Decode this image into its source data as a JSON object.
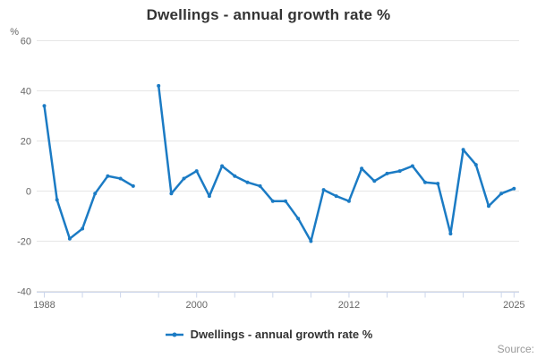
{
  "chart_data": {
    "type": "line",
    "title": "Dwellings - annual growth rate %",
    "ylabel": "%",
    "xlabel": "",
    "legend": "Dwellings - annual growth rate %",
    "source_label": "Source:",
    "xlim": [
      1987.4,
      2025.4
    ],
    "ylim": [
      -40,
      60
    ],
    "y_ticks": [
      60,
      40,
      20,
      0,
      -20,
      -40
    ],
    "x_ticks": [
      1988,
      1991,
      1994,
      1997,
      2000,
      2003,
      2006,
      2009,
      2012,
      2015,
      2018,
      2021,
      2024,
      2025
    ],
    "x_tick_labels": [
      1988,
      2000,
      2012,
      2025
    ],
    "grid": true,
    "legend_position": "bottom-center",
    "colors": {
      "series": "#1b7bc4",
      "grid": "#e6e6e6",
      "axis_line": "#ccd6eb",
      "axis_text": "#666666",
      "text": "#333333",
      "source": "#999999"
    },
    "series": [
      {
        "name": "Dwellings - annual growth rate %",
        "color": "#1b7bc4",
        "points": [
          [
            1988,
            34
          ],
          [
            1989,
            -3.5
          ],
          [
            1990,
            -19
          ],
          [
            1991,
            -15
          ],
          [
            1992,
            -1
          ],
          [
            1993,
            6
          ],
          [
            1994,
            5
          ],
          [
            1995,
            2
          ],
          [
            1996,
            null
          ],
          [
            1997,
            42
          ],
          [
            1998,
            -1
          ],
          [
            1999,
            5
          ],
          [
            2000,
            8
          ],
          [
            2001,
            -2
          ],
          [
            2002,
            10
          ],
          [
            2003,
            6
          ],
          [
            2004,
            3.5
          ],
          [
            2005,
            2
          ],
          [
            2006,
            -4
          ],
          [
            2007,
            -4
          ],
          [
            2008,
            -11
          ],
          [
            2009,
            -20
          ],
          [
            2010,
            0.5
          ],
          [
            2011,
            -2
          ],
          [
            2012,
            -4
          ],
          [
            2013,
            9
          ],
          [
            2014,
            4
          ],
          [
            2015,
            7
          ],
          [
            2016,
            8
          ],
          [
            2017,
            10
          ],
          [
            2018,
            3.5
          ],
          [
            2019,
            3
          ],
          [
            2020,
            -17
          ],
          [
            2021,
            16.5
          ],
          [
            2022,
            10.5
          ],
          [
            2023,
            -6
          ],
          [
            2024,
            -1
          ],
          [
            2025,
            1
          ]
        ]
      }
    ]
  }
}
